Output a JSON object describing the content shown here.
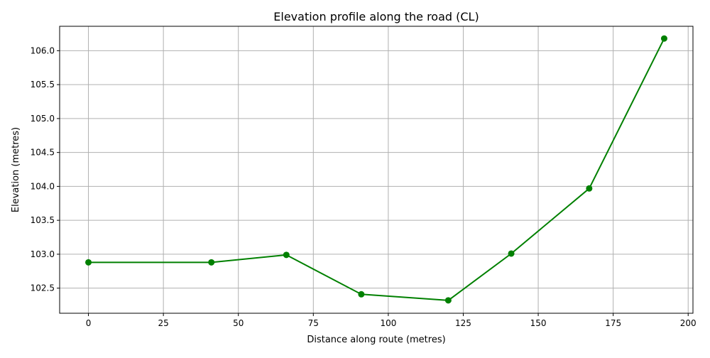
{
  "chart_data": {
    "type": "line",
    "title": "Elevation profile along the road (CL)",
    "xlabel": "Distance along route (metres)",
    "ylabel": "Elevation (metres)",
    "xlim": [
      -9.6,
      201.6
    ],
    "ylim": [
      102.13,
      106.36
    ],
    "x_ticks": [
      0,
      25,
      50,
      75,
      100,
      125,
      150,
      175,
      200
    ],
    "x_tick_labels": [
      "0",
      "25",
      "50",
      "75",
      "100",
      "125",
      "150",
      "175",
      "200"
    ],
    "y_ticks": [
      102.5,
      103.0,
      103.5,
      104.0,
      104.5,
      105.0,
      105.5,
      106.0
    ],
    "y_tick_labels": [
      "102.5",
      "103.0",
      "103.5",
      "104.0",
      "104.5",
      "105.0",
      "105.5",
      "106.0"
    ],
    "grid": true,
    "series": [
      {
        "color": "#008000",
        "marker": "circle",
        "x": [
          0,
          41,
          66,
          91,
          120,
          141,
          167,
          192
        ],
        "y": [
          102.88,
          102.88,
          102.99,
          102.41,
          102.32,
          103.01,
          103.97,
          106.18
        ]
      }
    ]
  }
}
